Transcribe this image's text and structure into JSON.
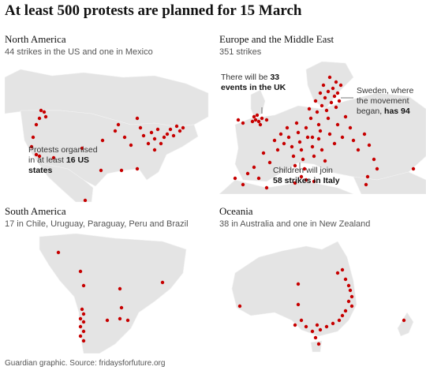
{
  "title": "At least 500 protests are planned for 15 March",
  "panels": [
    {
      "heading": "North America",
      "subtitle": "44 strikes in the US and one in Mexico",
      "annotations": [
        {
          "lines": [
            "Protests organised",
            "in at least ",
            "16 US",
            "states"
          ]
        }
      ]
    },
    {
      "heading": "Europe and the Middle East",
      "subtitle": "351 strikes",
      "annotations": [
        {
          "text": "There will be 33 events in the UK",
          "plain": "There will be ",
          "bold": "33",
          "line2": "events in the UK"
        },
        {
          "plain1": "Sweden, where",
          "plain2": "the movement",
          "plain3": "began, ",
          "bold": "has 94"
        },
        {
          "plain": "Children will join",
          "bold": "58 strikes in Italy"
        }
      ]
    },
    {
      "heading": "South America",
      "subtitle": "17 in Chile, Uruguay, Paraguay, Peru and Brazil"
    },
    {
      "heading": "Oceania",
      "subtitle": "38 in Australia and one in New Zealand"
    }
  ],
  "source": "Guardian graphic. Source: fridaysforfuture.org",
  "colors": {
    "dot": "#c70000",
    "land": "#e4e4e4"
  }
}
